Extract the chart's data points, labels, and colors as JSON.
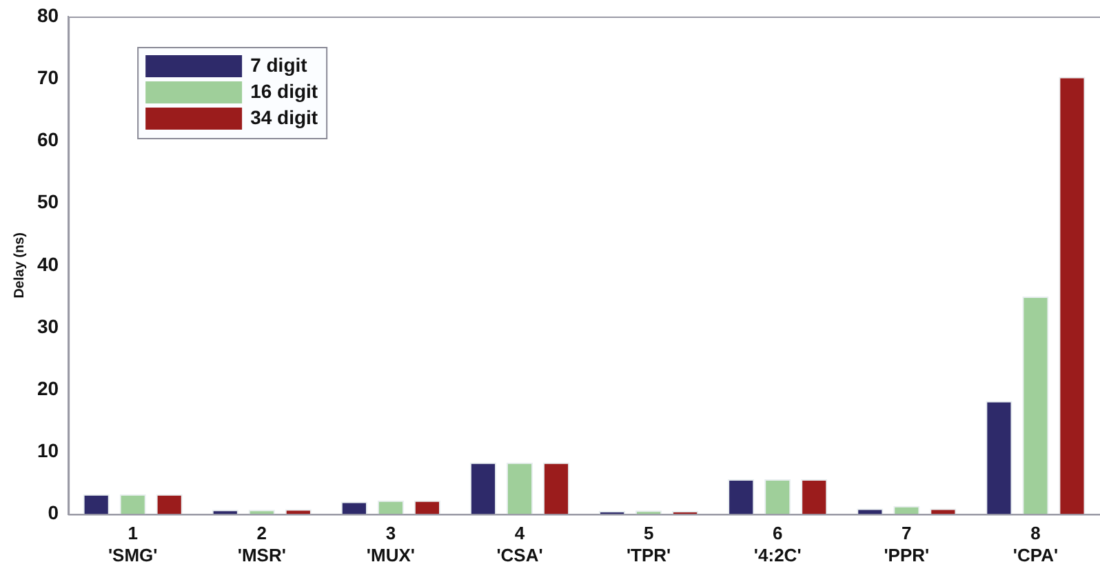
{
  "chart_data": {
    "type": "bar",
    "ylabel": "Delay (ns)",
    "categories": [
      "1\n'SMG'",
      "2\n'MSR'",
      "3\n'MUX'",
      "4\n'CSA'",
      "5\n'TPR'",
      "6\n'4:2C'",
      "7\n'PPR'",
      "8\n'CPA'"
    ],
    "series": [
      {
        "name": "7 digit",
        "color": "#2e2a6a",
        "values": [
          3.2,
          0.7,
          2.0,
          8.3,
          0.5,
          5.6,
          0.9,
          18.2
        ]
      },
      {
        "name": "16 digit",
        "color": "#9fcf9a",
        "values": [
          3.2,
          0.7,
          2.2,
          8.3,
          0.6,
          5.6,
          1.3,
          35
        ]
      },
      {
        "name": "34 digit",
        "color": "#9b1c1c",
        "values": [
          3.2,
          0.8,
          2.2,
          8.3,
          0.5,
          5.6,
          0.9,
          70.3
        ]
      }
    ],
    "ylim": [
      0,
      80
    ],
    "yticks": [
      0,
      10,
      20,
      30,
      40,
      50,
      60,
      70,
      80
    ],
    "grid": false,
    "legend": "top left"
  }
}
